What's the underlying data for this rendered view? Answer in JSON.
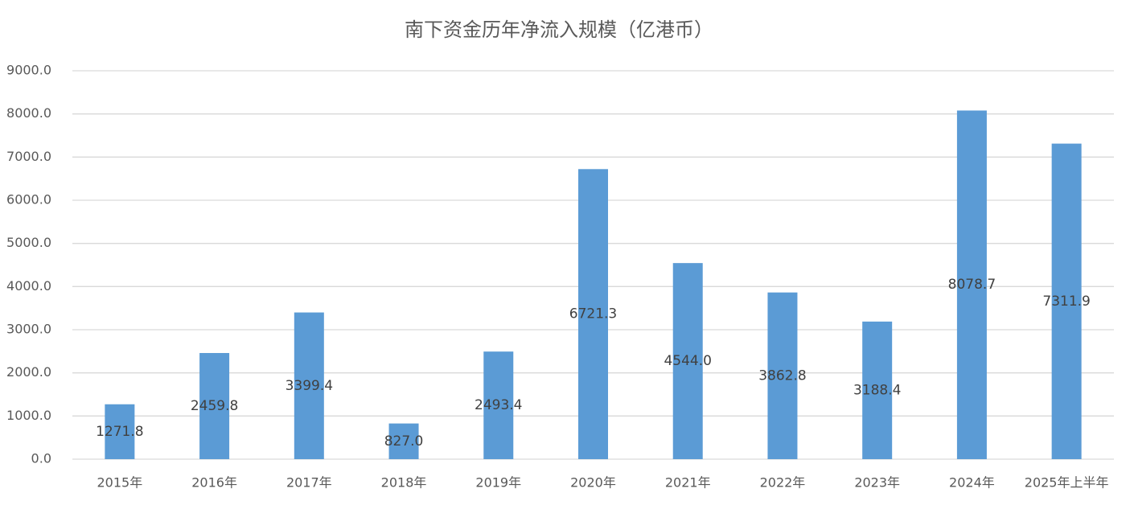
{
  "chart_data": {
    "type": "bar",
    "title": "南下资金历年净流入规模（亿港币）",
    "categories": [
      "2015年",
      "2016年",
      "2017年",
      "2018年",
      "2019年",
      "2020年",
      "2021年",
      "2022年",
      "2023年",
      "2024年",
      "2025年上半年"
    ],
    "values": [
      1271.8,
      2459.8,
      3399.4,
      827.0,
      2493.4,
      6721.3,
      4544.0,
      3862.8,
      3188.4,
      8078.7,
      7311.9
    ],
    "value_labels": [
      "1271.8",
      "2459.8",
      "3399.4",
      "827.0",
      "2493.4",
      "6721.3",
      "4544.0",
      "3862.8",
      "3188.4",
      "8078.7",
      "7311.9"
    ],
    "color": "#5b9bd5",
    "ylim": [
      0,
      9000
    ],
    "yticks": [
      {
        "value": 0,
        "label": "0.0"
      },
      {
        "value": 1000,
        "label": "1000.0"
      },
      {
        "value": 2000,
        "label": "2000.0"
      },
      {
        "value": 3000,
        "label": "3000.0"
      },
      {
        "value": 4000,
        "label": "4000.0"
      },
      {
        "value": 5000,
        "label": "5000.0"
      },
      {
        "value": 6000,
        "label": "6000.0"
      },
      {
        "value": 7000,
        "label": "7000.0"
      },
      {
        "value": 8000,
        "label": "8000.0"
      },
      {
        "value": 9000,
        "label": "9000.0"
      }
    ],
    "grid": true
  }
}
